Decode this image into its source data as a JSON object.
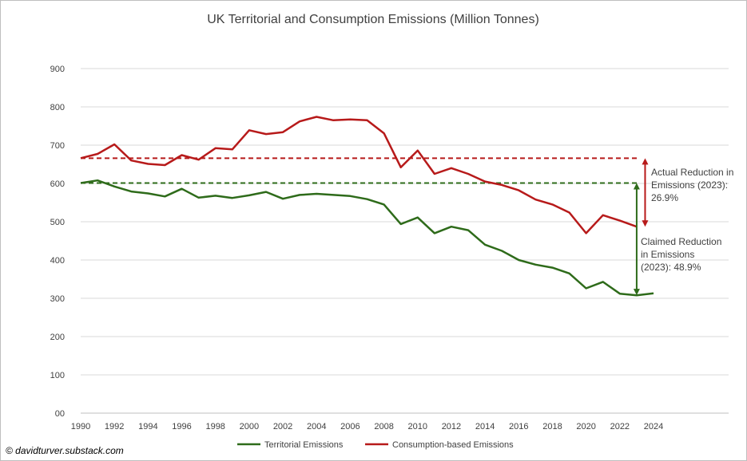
{
  "chart_data": {
    "type": "line",
    "title": "UK Territorial and Consumption Emissions (Million Tonnes)",
    "xlabel": "",
    "ylabel": "",
    "ylim": [
      0,
      900
    ],
    "xlim": [
      1990,
      2024
    ],
    "yticks": [
      0,
      100,
      200,
      300,
      400,
      500,
      600,
      700,
      800,
      900
    ],
    "yticklabels": [
      "00",
      "100",
      "200",
      "300",
      "400",
      "500",
      "600",
      "700",
      "800",
      "900"
    ],
    "xticks": [
      1990,
      1992,
      1994,
      1996,
      1998,
      2000,
      2002,
      2004,
      2006,
      2008,
      2010,
      2012,
      2014,
      2016,
      2018,
      2020,
      2022,
      2024
    ],
    "grid": "horizontal",
    "legend": "bottom",
    "series": [
      {
        "name": "Territorial Emissions",
        "color": "#2e6b1a",
        "x": [
          1990,
          1991,
          1992,
          1993,
          1994,
          1995,
          1996,
          1997,
          1998,
          1999,
          2000,
          2001,
          2002,
          2003,
          2004,
          2005,
          2006,
          2007,
          2008,
          2009,
          2010,
          2011,
          2012,
          2013,
          2014,
          2015,
          2016,
          2017,
          2018,
          2019,
          2020,
          2021,
          2022,
          2023,
          2024
        ],
        "values": [
          601,
          608,
          592,
          579,
          574,
          566,
          586,
          563,
          568,
          562,
          569,
          578,
          560,
          570,
          573,
          570,
          567,
          559,
          545,
          494,
          511,
          470,
          487,
          478,
          440,
          424,
          400,
          388,
          380,
          365,
          326,
          343,
          312,
          308,
          313
        ]
      },
      {
        "name": "Consumption-based Emissions",
        "color": "#b71a1a",
        "x": [
          1990,
          1991,
          1992,
          1993,
          1994,
          1995,
          1996,
          1997,
          1998,
          1999,
          2000,
          2001,
          2002,
          2003,
          2004,
          2005,
          2006,
          2007,
          2008,
          2009,
          2010,
          2011,
          2012,
          2013,
          2014,
          2015,
          2016,
          2017,
          2018,
          2019,
          2020,
          2021,
          2022,
          2023
        ],
        "values": [
          666,
          677,
          702,
          660,
          651,
          648,
          674,
          662,
          692,
          689,
          739,
          729,
          734,
          762,
          774,
          765,
          767,
          765,
          731,
          642,
          686,
          625,
          640,
          625,
          605,
          596,
          582,
          558,
          545,
          524,
          470,
          517,
          503,
          487
        ]
      }
    ],
    "reference_lines": [
      {
        "color": "#b71a1a",
        "y": 666,
        "x": [
          1990,
          2024
        ]
      },
      {
        "color": "#2e6b1a",
        "y": 601,
        "x": [
          1990,
          2024
        ]
      }
    ],
    "arrows": [
      {
        "color": "#b71a1a",
        "x": 2023.5,
        "y": [
          666,
          487
        ]
      },
      {
        "color": "#2e6b1a",
        "x": 2023,
        "y": [
          601,
          308
        ]
      }
    ],
    "annotations": [
      {
        "lines": [
          "Actual Reduction in",
          "Emissions (2023):",
          "26.9%"
        ]
      },
      {
        "lines": [
          "Claimed Reduction",
          "in Emissions",
          "(2023): 48.9%"
        ]
      }
    ],
    "credit": "© davidturver.substack.com"
  }
}
